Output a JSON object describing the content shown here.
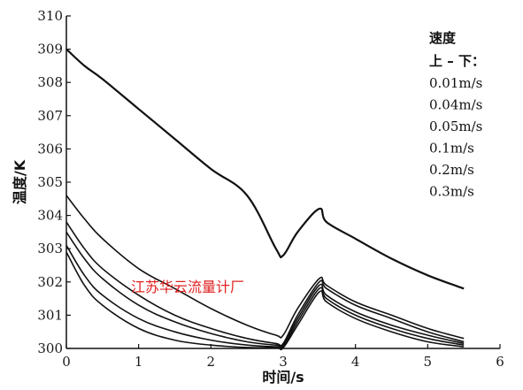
{
  "chart_data": {
    "type": "line",
    "xlabel": "时间/s",
    "ylabel": "温度/K",
    "xlim": [
      0,
      6
    ],
    "ylim": [
      300,
      310
    ],
    "x_ticks": [
      0,
      1,
      2,
      3,
      4,
      5,
      6
    ],
    "y_ticks": [
      300,
      301,
      302,
      303,
      304,
      305,
      306,
      307,
      308,
      309,
      310
    ],
    "grid": false,
    "legend": {
      "title": "速度",
      "subtitle": "上 – 下：",
      "entries": [
        "0.01m/s",
        "0.04m/s",
        "0.05m/s",
        "0.1m/s",
        "0.2m/s",
        "0.3m/s"
      ],
      "placement": "top-right"
    },
    "watermark": "江苏华云流量计厂",
    "series": [
      {
        "values_x": [
          0,
          0.25,
          0.5,
          1,
          1.5,
          2,
          2.5,
          2.9,
          3.0,
          3.2,
          3.5,
          3.6,
          4,
          4.5,
          5,
          5.5
        ],
        "values_y": [
          309.0,
          308.5,
          308.1,
          307.2,
          306.3,
          305.4,
          304.6,
          303.0,
          302.8,
          303.5,
          304.2,
          303.8,
          303.3,
          302.7,
          302.2,
          301.8
        ]
      },
      {
        "values_x": [
          0,
          0.25,
          0.5,
          1,
          1.5,
          2,
          2.5,
          2.9,
          3.0,
          3.2,
          3.5,
          3.6,
          4,
          4.5,
          5,
          5.5
        ],
        "values_y": [
          304.6,
          303.9,
          303.3,
          302.4,
          301.8,
          301.2,
          300.7,
          300.4,
          300.4,
          301.2,
          302.1,
          301.9,
          301.4,
          301.0,
          300.6,
          300.3
        ]
      },
      {
        "values_x": [
          0,
          0.25,
          0.5,
          1,
          1.5,
          2,
          2.5,
          2.9,
          3.0,
          3.2,
          3.5,
          3.6,
          4,
          4.5,
          5,
          5.5
        ],
        "values_y": [
          303.8,
          303.0,
          302.4,
          301.6,
          301.0,
          300.6,
          300.3,
          300.15,
          300.15,
          301.0,
          302.0,
          301.8,
          301.3,
          300.9,
          300.5,
          300.2
        ]
      },
      {
        "values_x": [
          0,
          0.25,
          0.5,
          1,
          1.5,
          2,
          2.5,
          2.9,
          3.0,
          3.2,
          3.5,
          3.6,
          4,
          4.5,
          5,
          5.5
        ],
        "values_y": [
          303.5,
          302.7,
          302.1,
          301.3,
          300.8,
          300.45,
          300.2,
          300.1,
          300.1,
          300.9,
          301.9,
          301.6,
          301.1,
          300.7,
          300.4,
          300.15
        ]
      },
      {
        "values_x": [
          0,
          0.25,
          0.5,
          1,
          1.5,
          2,
          2.5,
          2.9,
          3.0,
          3.2,
          3.5,
          3.6,
          4,
          4.5,
          5,
          5.5
        ],
        "values_y": [
          303.1,
          302.2,
          301.6,
          300.9,
          300.5,
          300.25,
          300.1,
          300.05,
          300.05,
          300.8,
          301.8,
          301.5,
          301.0,
          300.6,
          300.3,
          300.1
        ]
      },
      {
        "values_x": [
          0,
          0.25,
          0.5,
          1,
          1.5,
          2,
          2.5,
          2.9,
          3.0,
          3.2,
          3.5,
          3.6,
          4,
          4.5,
          5,
          5.5
        ],
        "values_y": [
          302.9,
          301.9,
          301.3,
          300.6,
          300.25,
          300.1,
          300.03,
          300.02,
          300.02,
          300.7,
          301.7,
          301.4,
          300.9,
          300.5,
          300.2,
          300.05
        ]
      }
    ]
  }
}
